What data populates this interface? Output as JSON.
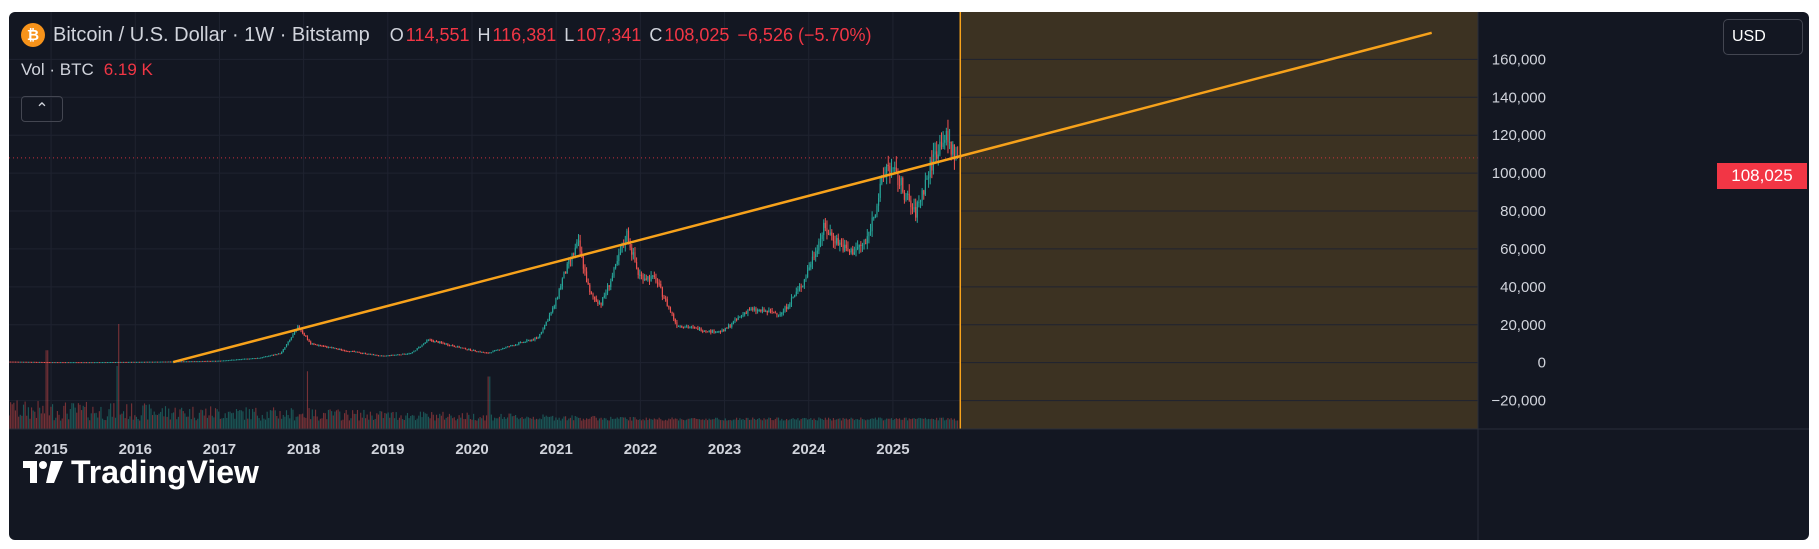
{
  "header": {
    "symbol_title": "Bitcoin / U.S. Dollar · 1W · Bitstamp",
    "icon": "bitcoin-icon",
    "icon_glyph": "₿",
    "ohlc": [
      {
        "key": "O",
        "value": "114,551"
      },
      {
        "key": "H",
        "value": "116,381"
      },
      {
        "key": "L",
        "value": "107,341"
      },
      {
        "key": "C",
        "value": "108,025"
      }
    ],
    "change": "−6,526 (−5.70%)",
    "volume_label": "Vol · BTC",
    "volume_value": "6.19 K",
    "collapse_icon": "chevron-up-icon",
    "collapse_glyph": "⌃"
  },
  "price_scale": {
    "currency": "USD",
    "last_price_label": "108,025"
  },
  "watermark": {
    "text": "TradingView",
    "icon": "tradingview-logo-icon"
  },
  "colors": {
    "background": "#131722",
    "grid": "#1f2330",
    "text": "#d1d4dc",
    "up": "#26a69a",
    "down": "#ef5350",
    "trendline": "#f7a21b",
    "highlight_zone": "#3c3222",
    "last_price": "#f23645",
    "vline": "#f7a21b"
  },
  "chart_data": {
    "type": "candlestick",
    "title": "Bitcoin / U.S. Dollar · 1W · Bitstamp",
    "ylabel": "USD",
    "ylim": [
      -35000,
      185000
    ],
    "xlim": [
      2014.5,
      2031.95
    ],
    "y_ticks": [
      -20000,
      0,
      20000,
      40000,
      60000,
      80000,
      100000,
      120000,
      140000,
      160000
    ],
    "y_tick_labels": [
      "−20,000",
      "0",
      "20,000",
      "40,000",
      "60,000",
      "80,000",
      "100,000",
      "120,000",
      "140,000",
      "160,000"
    ],
    "x_ticks": [
      2015,
      2016,
      2017,
      2018,
      2019,
      2020,
      2021,
      2022,
      2023,
      2024,
      2025
    ],
    "x_tick_labels": [
      "2015",
      "2016",
      "2017",
      "2018",
      "2019",
      "2020",
      "2021",
      "2022",
      "2023",
      "2024",
      "2025"
    ],
    "last_price": 108025,
    "last_date": 2025.78,
    "price_path": [
      {
        "t": 2014.5,
        "p": 600
      },
      {
        "t": 2015.0,
        "p": 300
      },
      {
        "t": 2015.5,
        "p": 260
      },
      {
        "t": 2016.0,
        "p": 420
      },
      {
        "t": 2016.5,
        "p": 650
      },
      {
        "t": 2017.0,
        "p": 980
      },
      {
        "t": 2017.5,
        "p": 2600
      },
      {
        "t": 2017.75,
        "p": 5000
      },
      {
        "t": 2017.96,
        "p": 19000
      },
      {
        "t": 2018.1,
        "p": 10000
      },
      {
        "t": 2018.5,
        "p": 6500
      },
      {
        "t": 2018.95,
        "p": 3500
      },
      {
        "t": 2019.3,
        "p": 5000
      },
      {
        "t": 2019.5,
        "p": 12000
      },
      {
        "t": 2019.95,
        "p": 7200
      },
      {
        "t": 2020.2,
        "p": 5000
      },
      {
        "t": 2020.5,
        "p": 9200
      },
      {
        "t": 2020.8,
        "p": 13000
      },
      {
        "t": 2020.99,
        "p": 29000
      },
      {
        "t": 2021.1,
        "p": 45000
      },
      {
        "t": 2021.28,
        "p": 63000
      },
      {
        "t": 2021.42,
        "p": 36000
      },
      {
        "t": 2021.55,
        "p": 31000
      },
      {
        "t": 2021.7,
        "p": 47000
      },
      {
        "t": 2021.86,
        "p": 68000
      },
      {
        "t": 2022.0,
        "p": 46000
      },
      {
        "t": 2022.2,
        "p": 44000
      },
      {
        "t": 2022.45,
        "p": 20000
      },
      {
        "t": 2022.85,
        "p": 16500
      },
      {
        "t": 2023.0,
        "p": 16500
      },
      {
        "t": 2023.3,
        "p": 28000
      },
      {
        "t": 2023.7,
        "p": 26000
      },
      {
        "t": 2023.95,
        "p": 42000
      },
      {
        "t": 2024.2,
        "p": 71000
      },
      {
        "t": 2024.5,
        "p": 58000
      },
      {
        "t": 2024.7,
        "p": 63000
      },
      {
        "t": 2024.95,
        "p": 105000
      },
      {
        "t": 2025.1,
        "p": 95000
      },
      {
        "t": 2025.28,
        "p": 78000
      },
      {
        "t": 2025.5,
        "p": 108000
      },
      {
        "t": 2025.62,
        "p": 120000
      },
      {
        "t": 2025.78,
        "p": 108025
      }
    ],
    "volume_spikes": [
      {
        "t": 2014.55,
        "v": 0.25
      },
      {
        "t": 2014.95,
        "v": 0.75
      },
      {
        "t": 2015.78,
        "v": 0.6
      },
      {
        "t": 2015.8,
        "v": 1.0
      },
      {
        "t": 2018.05,
        "v": 0.55
      },
      {
        "t": 2020.2,
        "v": 0.5
      }
    ],
    "trendline": {
      "x1": 2016.45,
      "y1": 300,
      "x2": 2031.4,
      "y2": 174000
    },
    "projection_zone": {
      "x_start": 2025.8,
      "x_end": 2031.95
    },
    "vertical_line": 2025.8
  }
}
